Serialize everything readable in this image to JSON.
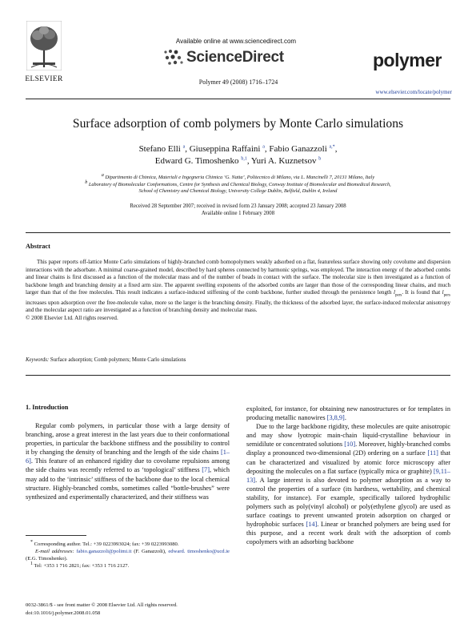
{
  "header": {
    "available_online": "Available online at www.sciencedirect.com",
    "sciencedirect_brand": "ScienceDirect",
    "publisher_logo_text": "ELSEVIER",
    "journal_logo_text": "polymer",
    "citation": "Polymer 49 (2008) 1716–1724",
    "journal_url": "www.elsevier.com/locate/polymer"
  },
  "article": {
    "title": "Surface adsorption of comb polymers by Monte Carlo simulations",
    "authors_line1": [
      {
        "name": "Stefano Elli",
        "sup": "a"
      },
      {
        "name": "Giuseppina Raffaini",
        "sup": "a"
      },
      {
        "name": "Fabio Ganazzoli",
        "sup": "a,*"
      }
    ],
    "authors_line2": [
      {
        "name": "Edward G. Timoshenko",
        "sup": "b,1"
      },
      {
        "name": "Yuri A. Kuznetsov",
        "sup": "b"
      }
    ],
    "affiliation_a": "Dipartimento di Chimica, Materiali e Ingegneria Chimica ‘G. Natta’, Politecnico di Milano, via L. Mancinelli 7, 20131 Milano, Italy",
    "affiliation_b_line1": "Laboratory of Biomolecular Conformations, Centre for Synthesis and Chemical Biology, Conway Institute of Biomolecular and Biomedical Research,",
    "affiliation_b_line2": "School of Chemistry and Chemical Biology, University College Dublin, Belfield, Dublin 4, Ireland",
    "dates_line1": "Received 28 September 2007; received in revised form 23 January 2008; accepted 23 January 2008",
    "dates_line2": "Available online 1 February 2008"
  },
  "abstract": {
    "heading": "Abstract",
    "text_part1": "This paper reports off-lattice Monte Carlo simulations of highly-branched comb homopolymers weakly adsorbed on a flat, featureless surface showing only covolume and dispersion interactions with the adsorbate. A minimal coarse-grained model, described by hard spheres connected by harmonic springs, was employed. The interaction energy of the adsorbed combs and linear chains is first discussed as a function of the molecular mass and of the number of beads in contact with the surface. The molecular size is then investigated as a function of backbone length and branching density at a fixed arm size. The apparent swelling exponents of the adsorbed combs are larger than those of the corresponding linear chains, and much larger than that of the free molecules. This result indicates a surface-induced stiffening of the comb backbone, further studied through the persistence length ",
    "lpers_symbol": "l",
    "lpers_sub": "pers",
    "text_part2": ". It is found that ",
    "text_part3": " increases upon adsorption over the free-molecule value, more so the larger is the branching density. Finally, the thickness of the adsorbed layer, the surface-induced molecular anisotropy and the molecular aspect ratio are investigated as a function of branching density and molecular mass.",
    "copyright": "© 2008 Elsevier Ltd. All rights reserved.",
    "keywords_label": "Keywords:",
    "keywords": "Surface adsorption; Comb polymers; Monte Carlo simulations"
  },
  "intro": {
    "heading": "1. Introduction",
    "p1_a": "Regular comb polymers, in particular those with a large density of branching, arose a great interest in the last years due to their conformational properties, in particular the backbone stiffness and the possibility to control it by changing the density of branching and the length of the side chains ",
    "ref1": "[1–6]",
    "p1_b": ". This feature of an enhanced rigidity due to covolume repulsions among the side chains was recently referred to as ‘topological’ stiffness ",
    "ref2": "[7]",
    "p1_c": ", which may add to the ‘intrinsic’ stiffness of the backbone due to the local chemical structure. Highly-branched combs, sometimes called “bottle-brushes” were synthesized and experimentally characterized, and their stiffness was",
    "p1_d": "exploited, for instance, for obtaining new nanostructures or for templates in producing metallic nanowires ",
    "ref3": "[3,8,9]",
    "p1_e": ".",
    "p2_a": "Due to the large backbone rigidity, these molecules are quite anisotropic and may show lyotropic main-chain liquid-crystalline behaviour in semidilute or concentrated solutions ",
    "ref4": "[10]",
    "p2_b": ". Moreover, highly-branched combs display a pronounced two-dimensional (2D) ordering on a surface ",
    "ref5": "[11]",
    "p2_c": " that can be characterized and visualized by atomic force microscopy after depositing the molecules on a flat surface (typically mica or graphite) ",
    "ref6": "[9,11–13]",
    "p2_d": ". A large interest is also devoted to polymer adsorption as a way to control the properties of a surface (its hardness, wettability, and chemical stability, for instance). For example, specifically tailored hydrophilic polymers such as poly(vinyl alcohol) or poly(ethylene glycol) are used as surface coatings to prevent unwanted protein adsorption on charged or hydrophobic surfaces ",
    "ref7": "[14]",
    "p2_e": ". Linear or branched polymers are being used for this purpose, and a recent work dealt with the adsorption of comb copolymers with an adsorbing backbone"
  },
  "footnotes": {
    "corresponding_mark": "*",
    "corresponding": "Corresponding author. Tel.: +39 0223993024; fax: +39 0223993080.",
    "email_label": "E-mail addresses:",
    "email1": "fabio.ganazzoli@polimi.it",
    "email1_who": "(F. Ganazzoli),",
    "email2_a": "edward.",
    "email2_b": "timoshenko@ucd.ie",
    "email2_who": "(E.G. Timoshenko).",
    "fn1_mark": "1",
    "fn1": "Tel: +353 1 716 2821; fax: +353 1 716 2127."
  },
  "bottom": {
    "issn": "0032-3861/$ - see front matter © 2008 Elsevier Ltd. All rights reserved.",
    "doi": "doi:10.1016/j.polymer.2008.01.058"
  },
  "colors": {
    "link": "#1f3f9a",
    "text": "#111111"
  }
}
